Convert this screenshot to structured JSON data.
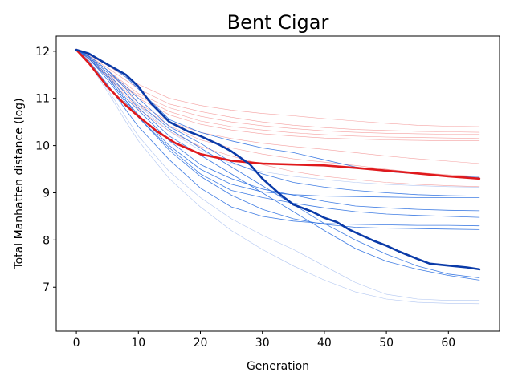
{
  "chart_data": {
    "type": "line",
    "title": "Bent Cigar",
    "xlabel": "Generation",
    "ylabel": "Total Manhatten distance (log)",
    "xlim": [
      -3.25,
      68.25
    ],
    "ylim": [
      6.07,
      12.32
    ],
    "xticks": [
      0,
      10,
      20,
      30,
      40,
      50,
      60
    ],
    "yticks": [
      7,
      8,
      9,
      10,
      11,
      12
    ],
    "grid": false,
    "legend": null,
    "colors": {
      "red_main": "#e0191c",
      "red_thin": "#f08080",
      "blue_main": "#0a3aa8",
      "blue_thin": "#2b6fe0",
      "blue_faint": "#9db8ee"
    },
    "series": [
      {
        "group": "red-main",
        "x": [
          0,
          2,
          5,
          8,
          10,
          13,
          16,
          20,
          25,
          30,
          35,
          40,
          45,
          50,
          55,
          60,
          65
        ],
        "y": [
          12.03,
          11.75,
          11.25,
          10.85,
          10.62,
          10.3,
          10.05,
          9.82,
          9.68,
          9.62,
          9.6,
          9.58,
          9.53,
          9.47,
          9.41,
          9.35,
          9.3
        ]
      },
      {
        "group": "red-thin",
        "x": [
          0,
          2,
          5,
          8,
          10,
          15,
          20,
          25,
          30,
          35,
          40,
          45,
          50,
          55,
          60,
          65
        ],
        "y": [
          12.03,
          11.92,
          11.7,
          11.45,
          11.3,
          11.0,
          10.85,
          10.75,
          10.68,
          10.63,
          10.57,
          10.52,
          10.47,
          10.43,
          10.41,
          10.4
        ]
      },
      {
        "group": "red-thin",
        "x": [
          0,
          2,
          5,
          8,
          10,
          15,
          20,
          25,
          30,
          35,
          40,
          45,
          50,
          55,
          60,
          65
        ],
        "y": [
          12.03,
          11.9,
          11.65,
          11.38,
          11.2,
          10.88,
          10.72,
          10.6,
          10.5,
          10.43,
          10.38,
          10.34,
          10.32,
          10.3,
          10.29,
          10.28
        ]
      },
      {
        "group": "red-thin",
        "x": [
          0,
          2,
          5,
          8,
          10,
          15,
          20,
          25,
          30,
          35,
          40,
          45,
          50,
          55,
          60,
          65
        ],
        "y": [
          12.03,
          11.9,
          11.6,
          11.3,
          11.1,
          10.8,
          10.62,
          10.5,
          10.42,
          10.36,
          10.31,
          10.28,
          10.26,
          10.25,
          10.24,
          10.24
        ]
      },
      {
        "group": "red-thin",
        "x": [
          0,
          2,
          5,
          8,
          10,
          15,
          20,
          25,
          30,
          35,
          40,
          45,
          50,
          55,
          60,
          65
        ],
        "y": [
          12.03,
          11.88,
          11.55,
          11.25,
          11.05,
          10.72,
          10.52,
          10.4,
          10.33,
          10.27,
          10.23,
          10.2,
          10.18,
          10.17,
          10.16,
          10.15
        ]
      },
      {
        "group": "red-thin",
        "x": [
          0,
          2,
          5,
          8,
          10,
          15,
          20,
          25,
          30,
          35,
          40,
          45,
          50,
          55,
          60,
          65
        ],
        "y": [
          12.03,
          11.88,
          11.55,
          11.22,
          11.0,
          10.65,
          10.45,
          10.33,
          10.25,
          10.2,
          10.16,
          10.14,
          10.12,
          10.11,
          10.1,
          10.1
        ]
      },
      {
        "group": "red-thin",
        "x": [
          0,
          2,
          5,
          8,
          10,
          15,
          20,
          25,
          30,
          35,
          40,
          45,
          50,
          55,
          60,
          65
        ],
        "y": [
          12.03,
          11.85,
          11.5,
          11.15,
          10.9,
          10.5,
          10.28,
          10.15,
          10.05,
          9.98,
          9.92,
          9.85,
          9.78,
          9.72,
          9.67,
          9.62
        ]
      },
      {
        "group": "red-thin",
        "x": [
          0,
          2,
          5,
          8,
          10,
          15,
          20,
          25,
          30,
          35,
          40,
          45,
          50,
          55,
          60,
          65
        ],
        "y": [
          12.03,
          11.85,
          11.48,
          11.1,
          10.85,
          10.42,
          10.12,
          9.95,
          9.82,
          9.72,
          9.65,
          9.58,
          9.5,
          9.43,
          9.38,
          9.35
        ]
      },
      {
        "group": "red-thin",
        "x": [
          0,
          2,
          5,
          8,
          10,
          15,
          20,
          25,
          30,
          35,
          40,
          45,
          50,
          55,
          60,
          65
        ],
        "y": [
          12.03,
          11.83,
          11.45,
          11.05,
          10.78,
          10.3,
          9.98,
          9.78,
          9.6,
          9.45,
          9.35,
          9.28,
          9.22,
          9.18,
          9.15,
          9.13
        ]
      },
      {
        "group": "blue-main",
        "x": [
          0,
          2,
          5,
          8,
          10,
          12,
          15,
          18,
          20,
          23,
          25,
          28,
          30,
          33,
          35,
          38,
          40,
          42,
          44,
          46,
          48,
          50,
          52,
          55,
          57,
          60,
          63,
          65
        ],
        "y": [
          12.03,
          11.95,
          11.72,
          11.5,
          11.25,
          10.9,
          10.5,
          10.3,
          10.2,
          10.02,
          9.88,
          9.6,
          9.3,
          8.95,
          8.75,
          8.6,
          8.47,
          8.38,
          8.22,
          8.1,
          7.98,
          7.88,
          7.76,
          7.6,
          7.5,
          7.46,
          7.42,
          7.38
        ]
      },
      {
        "group": "blue-thin",
        "x": [
          0,
          2,
          5,
          8,
          10,
          15,
          20,
          25,
          30,
          35,
          40,
          45,
          50,
          55,
          60,
          65
        ],
        "y": [
          12.03,
          11.95,
          11.72,
          11.45,
          11.2,
          10.55,
          10.28,
          10.1,
          9.95,
          9.85,
          9.7,
          9.55,
          9.45,
          9.4,
          9.36,
          9.33
        ]
      },
      {
        "group": "blue-thin",
        "x": [
          0,
          2,
          5,
          8,
          10,
          15,
          20,
          25,
          30,
          35,
          40,
          45,
          50,
          55,
          60,
          65
        ],
        "y": [
          12.03,
          11.9,
          11.6,
          11.25,
          11.0,
          10.4,
          10.05,
          9.65,
          9.4,
          9.22,
          9.12,
          9.05,
          9.0,
          8.96,
          8.94,
          8.93
        ]
      },
      {
        "group": "blue-thin",
        "x": [
          0,
          2,
          5,
          8,
          10,
          15,
          20,
          25,
          30,
          35,
          40,
          45,
          50,
          55,
          60,
          65
        ],
        "y": [
          12.03,
          11.85,
          11.45,
          10.95,
          10.65,
          10.0,
          9.5,
          9.18,
          9.02,
          8.96,
          8.93,
          8.92,
          8.91,
          8.9,
          8.9,
          8.9
        ]
      },
      {
        "group": "blue-thin",
        "x": [
          0,
          2,
          5,
          8,
          10,
          15,
          20,
          25,
          30,
          35,
          40,
          45,
          50,
          55,
          60,
          65
        ],
        "y": [
          12.03,
          11.88,
          11.5,
          11.0,
          10.75,
          10.1,
          9.6,
          9.3,
          9.08,
          8.95,
          8.82,
          8.72,
          8.68,
          8.65,
          8.63,
          8.62
        ]
      },
      {
        "group": "blue-thin",
        "x": [
          0,
          2,
          5,
          8,
          10,
          15,
          20,
          25,
          30,
          35,
          40,
          45,
          50,
          55,
          60,
          65
        ],
        "y": [
          12.03,
          11.85,
          11.4,
          10.9,
          10.6,
          9.95,
          9.4,
          9.05,
          8.9,
          8.78,
          8.68,
          8.6,
          8.55,
          8.52,
          8.5,
          8.48
        ]
      },
      {
        "group": "blue-thin",
        "x": [
          0,
          2,
          5,
          8,
          10,
          15,
          20,
          25,
          30,
          35,
          40,
          45,
          50,
          55,
          60,
          65
        ],
        "y": [
          12.03,
          11.8,
          11.3,
          10.75,
          10.4,
          9.7,
          9.1,
          8.7,
          8.5,
          8.4,
          8.35,
          8.33,
          8.32,
          8.31,
          8.31,
          8.3
        ]
      },
      {
        "group": "blue-thin",
        "x": [
          0,
          2,
          5,
          8,
          10,
          15,
          20,
          25,
          30,
          35,
          40,
          45,
          50,
          55,
          60,
          65
        ],
        "y": [
          12.03,
          11.88,
          11.55,
          11.1,
          10.8,
          10.2,
          9.8,
          9.4,
          9.0,
          8.6,
          8.2,
          7.82,
          7.55,
          7.38,
          7.25,
          7.15
        ]
      },
      {
        "group": "blue-thin",
        "x": [
          0,
          2,
          5,
          8,
          10,
          15,
          20,
          25,
          30,
          35,
          40,
          45,
          50,
          55,
          60,
          65
        ],
        "y": [
          12.03,
          11.85,
          11.45,
          10.95,
          10.6,
          9.9,
          9.35,
          8.95,
          8.65,
          8.45,
          8.33,
          8.27,
          8.25,
          8.24,
          8.23,
          8.22
        ]
      },
      {
        "group": "blue-thin",
        "x": [
          0,
          2,
          5,
          8,
          10,
          15,
          20,
          25,
          30,
          35,
          40,
          45,
          50,
          55,
          60,
          65
        ],
        "y": [
          12.03,
          11.9,
          11.6,
          11.2,
          10.9,
          10.35,
          9.95,
          9.55,
          9.15,
          8.75,
          8.35,
          8.0,
          7.7,
          7.45,
          7.28,
          7.2
        ]
      },
      {
        "group": "blue-faint",
        "x": [
          0,
          2,
          5,
          8,
          10,
          15,
          20,
          25,
          30,
          35,
          40,
          45,
          50,
          55,
          60,
          65
        ],
        "y": [
          12.03,
          11.78,
          11.2,
          10.6,
          10.2,
          9.45,
          8.9,
          8.45,
          8.1,
          7.8,
          7.45,
          7.1,
          6.85,
          6.75,
          6.72,
          6.72
        ]
      },
      {
        "group": "blue-faint",
        "x": [
          0,
          2,
          5,
          8,
          10,
          15,
          20,
          25,
          30,
          35,
          40,
          45,
          50,
          55,
          60,
          65
        ],
        "y": [
          12.03,
          11.75,
          11.15,
          10.5,
          10.1,
          9.3,
          8.7,
          8.2,
          7.8,
          7.45,
          7.15,
          6.9,
          6.75,
          6.68,
          6.66,
          6.65
        ]
      },
      {
        "group": "blue-faint",
        "x": [
          0,
          2,
          5,
          8,
          10,
          15,
          20,
          25,
          30,
          35,
          40,
          45,
          50,
          55,
          60,
          65
        ],
        "y": [
          12.03,
          11.85,
          11.5,
          11.1,
          10.85,
          10.3,
          9.9,
          9.62,
          9.45,
          9.35,
          9.28,
          9.22,
          9.18,
          9.15,
          9.13,
          9.12
        ]
      }
    ]
  }
}
